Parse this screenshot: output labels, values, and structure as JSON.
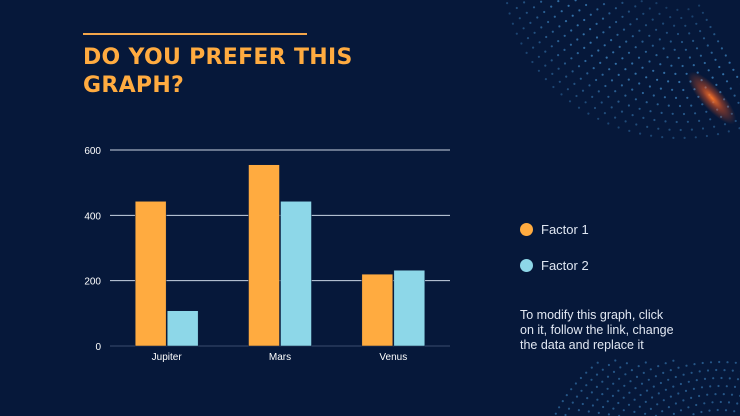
{
  "title": "DO YOU PREFER THIS GRAPH?",
  "note": "To modify this graph, click on it, follow the link, change the data and replace it",
  "colors": {
    "background": "#06183a",
    "title": "#ffab40",
    "rule": "#f4a64a",
    "factor1": "#ffab40",
    "factor2": "#8dd7e8",
    "grid": "#c9d3e3",
    "axis_text": "#ffffff",
    "dots": "#3f88c5"
  },
  "chart_data": {
    "type": "bar",
    "title": "",
    "xlabel": "",
    "ylabel": "",
    "categories": [
      "Jupiter",
      "Mars",
      "Venus"
    ],
    "series": [
      {
        "name": "Factor 1",
        "values": [
          443,
          555,
          220
        ]
      },
      {
        "name": "Factor 2",
        "values": [
          108,
          443,
          232
        ]
      }
    ],
    "ylim": [
      0,
      600
    ],
    "yticks": [
      0,
      200,
      400,
      600
    ],
    "grid": true,
    "legend": "right"
  }
}
